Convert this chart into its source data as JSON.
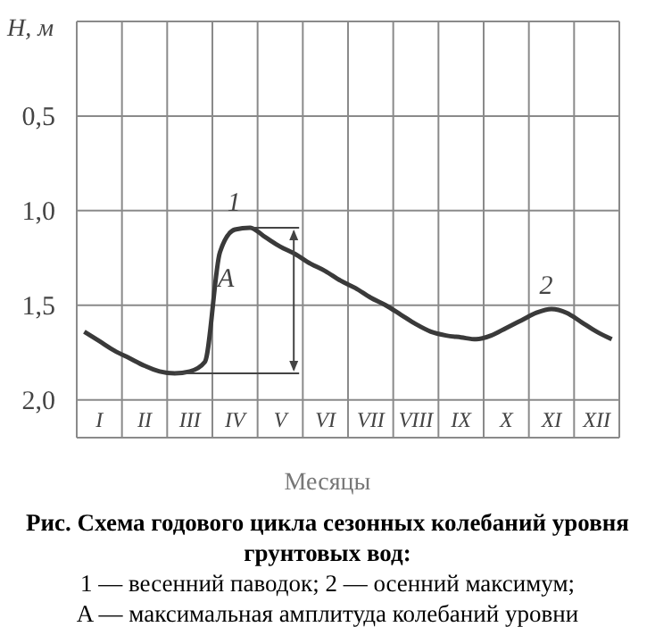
{
  "chart_data": {
    "type": "line",
    "title": "Рис. Схема годового цикла сезонных колебаний уровня грунтовых вод:",
    "xlabel": "Месяцы",
    "ylabel": "H, м",
    "annotations": [
      "1",
      "A",
      "2",
      "1 — весенний паводок; 2 — осенний максимум;",
      "A — максимальная амплитуда колебаний уровни"
    ],
    "categories": [
      null,
      "I",
      null,
      null,
      "II",
      null,
      null,
      "III",
      null,
      null,
      "IV",
      null,
      null,
      "V",
      null,
      null,
      "VI",
      null,
      null,
      "VII",
      null,
      null,
      "VIII",
      null,
      null,
      "IX",
      null,
      null,
      "X",
      null,
      null,
      "XI",
      null,
      null,
      "XII",
      null
    ],
    "series": [
      {
        "color": "#3a3a3a",
        "values": [
          1.64,
          1.69,
          1.74,
          1.78,
          1.82,
          1.85,
          1.86,
          1.85,
          1.8,
          1.22,
          1.1,
          1.09,
          1.14,
          1.19,
          1.23,
          1.28,
          1.32,
          1.37,
          1.41,
          1.46,
          1.5,
          1.55,
          1.6,
          1.64,
          1.66,
          1.67,
          1.68,
          1.66,
          1.62,
          1.58,
          1.54,
          1.52,
          1.54,
          1.59,
          1.64,
          1.68
        ]
      }
    ],
    "ylim": [
      2.2,
      0
    ],
    "yticks": [
      {
        "value": 0,
        "label": null
      },
      {
        "value": 0.5,
        "label": "0,5"
      },
      {
        "value": 1,
        "label": "1,0"
      },
      {
        "value": 1.5,
        "label": "1,5"
      },
      {
        "value": 2,
        "label": "2,0"
      }
    ],
    "grid": true,
    "marker": "none",
    "line_style": "solid"
  }
}
